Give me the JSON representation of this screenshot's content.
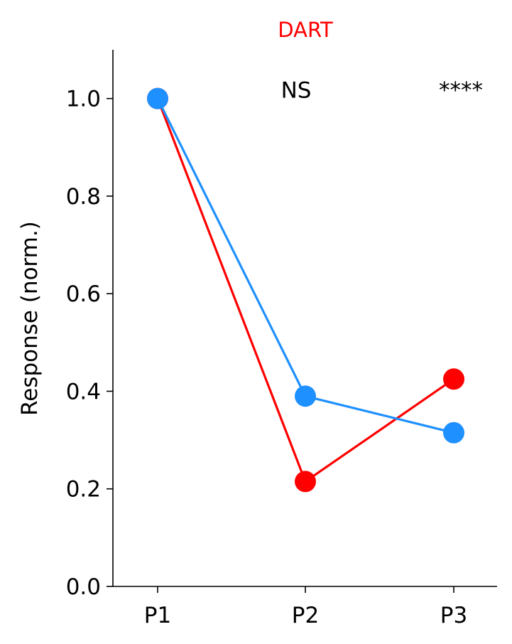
{
  "chart_data": {
    "type": "line",
    "title": "DART",
    "title_color": "#ff0000",
    "xlabel": "",
    "ylabel": "Response (norm.)",
    "categories": [
      "P1",
      "P2",
      "P3"
    ],
    "ylim": [
      0,
      1.1
    ],
    "yticks": [
      "0.0",
      "0.2",
      "0.4",
      "0.6",
      "0.8",
      "1.0"
    ],
    "grid": false,
    "series": [
      {
        "color": "#ff0000",
        "values": [
          1.0,
          0.215,
          0.425
        ]
      },
      {
        "color": "#1e90ff",
        "values": [
          1.0,
          0.39,
          0.315
        ]
      }
    ],
    "annotations": [
      {
        "category": "P2",
        "text": "NS",
        "y": 1.0
      },
      {
        "category": "P3",
        "text": "****",
        "y": 1.0
      }
    ]
  }
}
